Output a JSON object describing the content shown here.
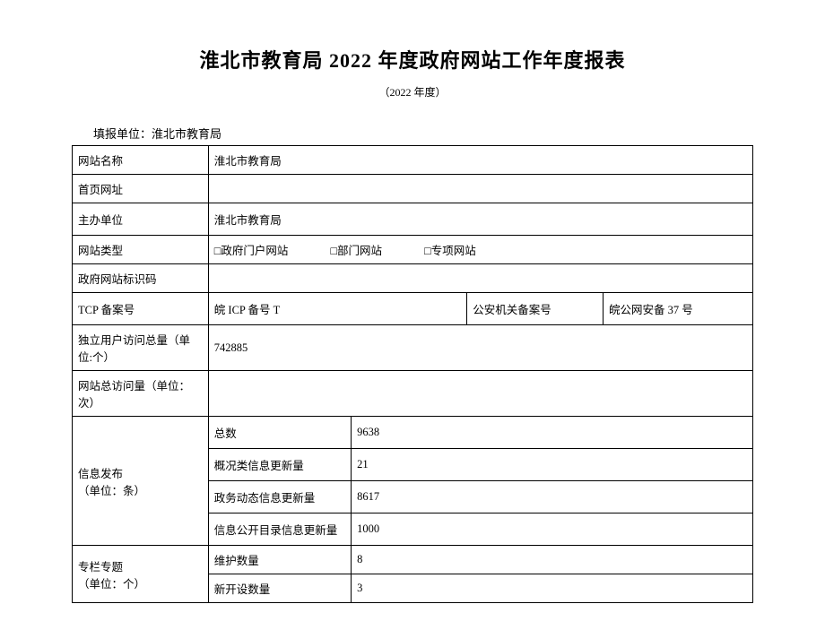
{
  "title": "淮北市教育局 2022 年度政府网站工作年度报表",
  "subtitle": "（2022 年度）",
  "reporter_label": "填报单位：",
  "reporter_value": "淮北市教育局",
  "rows": {
    "site_name_label": "网站名称",
    "site_name_value": "淮北市教育局",
    "home_url_label": "首页网址",
    "home_url_value": "",
    "host_unit_label": "主办单位",
    "host_unit_value": " 淮北市教育局",
    "site_type_label": "网站类型",
    "site_type_opt1": "□政府门户网站",
    "site_type_opt2": "□部门网站",
    "site_type_opt3": "□专项网站",
    "gov_code_label": "政府网站标识码",
    "gov_code_value": "",
    "tcp_label": "TCP 备案号",
    "tcp_value": " 皖 ICP 备号 T",
    "police_label": "公安机关备案号",
    "police_value": "皖公网安备 37 号",
    "uv_label": "独立用户访问总量（单位:个）",
    "uv_value": "742885",
    "pv_label": "网站总访问量（单位：次）",
    "pv_value": "",
    "info_pub_label": "信息发布\n（单位：条）",
    "info_total_label": "总数",
    "info_total_value": "9638",
    "info_overview_label": "概况类信息更新量",
    "info_overview_value": "21",
    "info_dynamic_label": "政务动态信息更新量",
    "info_dynamic_value": "8617",
    "info_catalog_label": "信息公开目录信息更新量",
    "info_catalog_value": "1000",
    "column_label": "专栏专题\n（单位：个）",
    "column_maintain_label": "维护数量",
    "column_maintain_value": "8",
    "column_new_label": "新开设数量",
    "column_new_value": "3"
  }
}
